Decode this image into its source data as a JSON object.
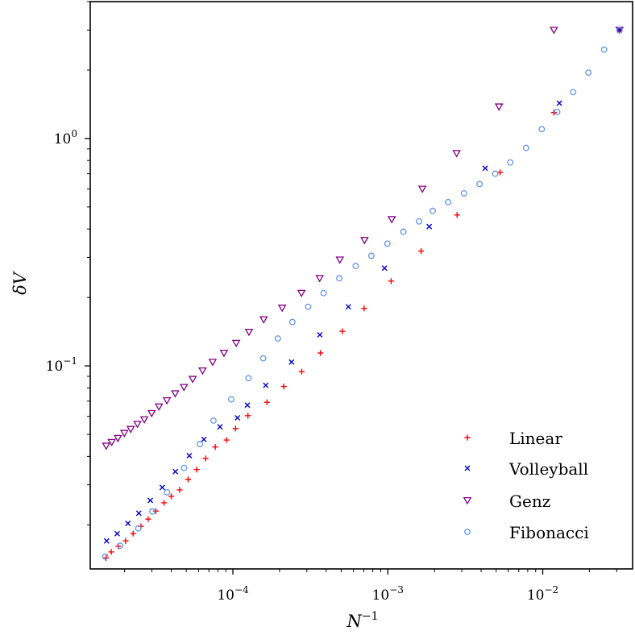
{
  "chart_data": {
    "type": "scatter",
    "xlabel": "N^{-1}",
    "ylabel": "δV",
    "xscale": "log",
    "yscale": "log",
    "xlim": [
      1.2e-05,
      0.038
    ],
    "ylim": [
      0.0128,
      4.0
    ],
    "xticks": [
      {
        "base": "10",
        "exp": "−4",
        "value": 0.0001
      },
      {
        "base": "10",
        "exp": "−3",
        "value": 0.001
      },
      {
        "base": "10",
        "exp": "−2",
        "value": 0.01
      }
    ],
    "yticks": [
      {
        "base": "10",
        "exp": "0",
        "value": 1.0
      },
      {
        "base": "10",
        "exp": "−1",
        "value": 0.1
      }
    ],
    "grid": false,
    "legend_position": "lower-right",
    "series": [
      {
        "name": "Linear",
        "marker": "plus",
        "color": "#ff0000",
        "x": [
          1.52e-05,
          1.64e-05,
          1.82e-05,
          2.03e-05,
          2.27e-05,
          2.55e-05,
          2.84e-05,
          3.18e-05,
          3.59e-05,
          4e-05,
          4.53e-05,
          5.14e-05,
          5.84e-05,
          6.67e-05,
          7.69e-05,
          9.1e-05,
          0.000104,
          0.000125,
          0.000166,
          0.000213,
          0.000278,
          0.000367,
          0.000508,
          0.000703,
          0.00105,
          0.00164,
          0.0028,
          0.0053,
          0.0118,
          0.0313
        ],
        "y": [
          0.0143,
          0.0152,
          0.0161,
          0.017,
          0.0183,
          0.0197,
          0.0212,
          0.023,
          0.025,
          0.0267,
          0.0285,
          0.0317,
          0.035,
          0.0392,
          0.044,
          0.0472,
          0.053,
          0.0604,
          0.0692,
          0.0812,
          0.0943,
          0.114,
          0.142,
          0.179,
          0.236,
          0.32,
          0.461,
          0.71,
          1.3,
          2.99
        ]
      },
      {
        "name": "Volleyball",
        "marker": "x",
        "color": "#0000cc",
        "x": [
          1.53e-05,
          1.79e-05,
          2.1e-05,
          2.47e-05,
          2.93e-05,
          3.5e-05,
          4.25e-05,
          5.23e-05,
          6.5e-05,
          8.25e-05,
          0.000107,
          0.000124,
          0.000163,
          0.000239,
          0.000364,
          0.000556,
          0.000952,
          0.00185,
          0.00425,
          0.0128,
          0.0313
        ],
        "y": [
          0.017,
          0.0183,
          0.0203,
          0.0225,
          0.0256,
          0.0292,
          0.0343,
          0.0403,
          0.0475,
          0.054,
          0.0591,
          0.0672,
          0.0822,
          0.104,
          0.137,
          0.182,
          0.269,
          0.41,
          0.74,
          1.43,
          3.0
        ]
      },
      {
        "name": "Genz",
        "marker": "triangle-down",
        "color": "#800080",
        "x": [
          1.52e-05,
          1.65e-05,
          1.81e-05,
          1.99e-05,
          2.19e-05,
          2.42e-05,
          2.68e-05,
          2.99e-05,
          3.33e-05,
          3.75e-05,
          4.24e-05,
          4.83e-05,
          5.5e-05,
          6.37e-05,
          7.4e-05,
          8.76e-05,
          0.000105,
          0.000127,
          0.000158,
          0.000208,
          0.000277,
          0.000363,
          0.00049,
          0.000707,
          0.00106,
          0.00167,
          0.00278,
          0.00522,
          0.0118,
          0.0313
        ],
        "y": [
          0.0445,
          0.0462,
          0.0481,
          0.0506,
          0.0527,
          0.0555,
          0.0581,
          0.0619,
          0.0662,
          0.0705,
          0.0756,
          0.0806,
          0.0875,
          0.0953,
          0.104,
          0.114,
          0.126,
          0.141,
          0.16,
          0.18,
          0.209,
          0.243,
          0.293,
          0.357,
          0.441,
          0.6,
          0.861,
          1.38,
          3.0,
          3.0
        ]
      },
      {
        "name": "Fibonacci",
        "marker": "circle",
        "color": "#6495ed",
        "x": [
          1.5e-05,
          1.87e-05,
          2.45e-05,
          3.02e-05,
          3.76e-05,
          4.84e-05,
          6.13e-05,
          7.49e-05,
          9.76e-05,
          0.000126,
          0.000157,
          0.000195,
          0.000242,
          0.000306,
          0.000385,
          0.000486,
          0.00062,
          0.000783,
          0.000993,
          0.00126,
          0.00159,
          0.00195,
          0.00245,
          0.0031,
          0.00391,
          0.00493,
          0.00617,
          0.0078,
          0.00985,
          0.0124,
          0.0157,
          0.0197,
          0.0249,
          0.0313
        ],
        "y": [
          0.0145,
          0.0162,
          0.0193,
          0.0229,
          0.0278,
          0.0356,
          0.0453,
          0.0575,
          0.0713,
          0.0883,
          0.108,
          0.132,
          0.156,
          0.182,
          0.209,
          0.243,
          0.275,
          0.305,
          0.345,
          0.389,
          0.432,
          0.481,
          0.525,
          0.574,
          0.631,
          0.7,
          0.785,
          0.909,
          1.1,
          1.31,
          1.6,
          1.95,
          2.46,
          3.0
        ]
      }
    ]
  }
}
